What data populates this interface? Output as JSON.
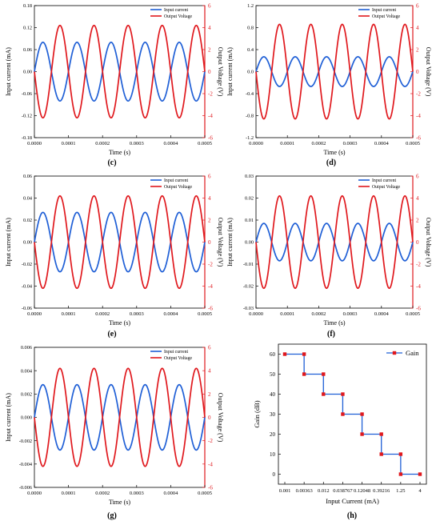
{
  "colors": {
    "input_current": "#1f5fd6",
    "output_voltage": "#e0181d",
    "gain": "#1f5fd6",
    "gain_marker": "#e0181d",
    "axis": "#000000"
  },
  "chart_data": [
    {
      "type": "line",
      "panel": "(c)",
      "xlabel": "Time (s)",
      "ylabel_left": "Input current (mA)",
      "ylabel_right": "Output Voltage (V)",
      "xlim": [
        0,
        0.0005
      ],
      "ylim_left": [
        -0.18,
        0.18
      ],
      "ylim_right": [
        -6,
        6
      ],
      "xticks": [
        "0.0000",
        "0.0001",
        "0.0002",
        "0.0003",
        "0.0004",
        "0.0005"
      ],
      "yticks_left": [
        "-0.18",
        "-0.12",
        "-0.06",
        "0.00",
        "0.06",
        "0.12",
        "0.18"
      ],
      "yticks_right": [
        "-6",
        "-4",
        "-2",
        "0",
        "2",
        "4",
        "6"
      ],
      "series": [
        {
          "name": "Input current",
          "axis": "left",
          "amplitude": 0.08,
          "frequency_hz": 10000,
          "phase": "sin"
        },
        {
          "name": "Output Voltage",
          "axis": "right",
          "amplitude": 4.2,
          "frequency_hz": 10000,
          "phase": "-sin"
        }
      ],
      "legend": "top-right"
    },
    {
      "type": "line",
      "panel": "(d)",
      "xlabel": "Time (s)",
      "ylabel_left": "Input current (mA)",
      "ylabel_right": "Output Voltage (V)",
      "xlim": [
        0,
        0.0005
      ],
      "ylim_left": [
        -1.2,
        1.2
      ],
      "ylim_right": [
        -6,
        6
      ],
      "xticks": [
        "0.0000",
        "0.0001",
        "0.0002",
        "0.0003",
        "0.0004",
        "0.0005"
      ],
      "yticks_left": [
        "-1.2",
        "-0.8",
        "-0.4",
        "0.0",
        "0.4",
        "0.8",
        "1.2"
      ],
      "yticks_right": [
        "-6",
        "-4",
        "-2",
        "0",
        "2",
        "4",
        "6"
      ],
      "series": [
        {
          "name": "Input current",
          "axis": "left",
          "amplitude": 0.27,
          "frequency_hz": 10000,
          "phase": "sin"
        },
        {
          "name": "Output Voltage",
          "axis": "right",
          "amplitude": 4.3,
          "frequency_hz": 10000,
          "phase": "-sin"
        }
      ],
      "legend": "top-right"
    },
    {
      "type": "line",
      "panel": "(e)",
      "xlabel": "Time (s)",
      "ylabel_left": "Input current (mA)",
      "ylabel_right": "Output Voltage (V)",
      "xlim": [
        0,
        0.0005
      ],
      "ylim_left": [
        -0.06,
        0.06
      ],
      "ylim_right": [
        -6,
        6
      ],
      "xticks": [
        "0.0000",
        "0.0001",
        "0.0002",
        "0.0003",
        "0.0004",
        "0.0005"
      ],
      "yticks_left": [
        "-0.06",
        "-0.04",
        "-0.02",
        "0.00",
        "0.02",
        "0.04",
        "0.06"
      ],
      "yticks_right": [
        "-6",
        "-4",
        "-2",
        "0",
        "2",
        "4",
        "6"
      ],
      "series": [
        {
          "name": "Input current",
          "axis": "left",
          "amplitude": 0.027,
          "frequency_hz": 10000,
          "phase": "sin"
        },
        {
          "name": "Output Voltage",
          "axis": "right",
          "amplitude": 4.2,
          "frequency_hz": 10000,
          "phase": "-sin"
        }
      ],
      "legend": "top-right"
    },
    {
      "type": "line",
      "panel": "(f)",
      "xlabel": "Time (s)",
      "ylabel_left": "Input current (mA)",
      "ylabel_right": "Output Voltage (V)",
      "xlim": [
        0,
        0.0005
      ],
      "ylim_left": [
        -0.03,
        0.03
      ],
      "ylim_right": [
        -6,
        6
      ],
      "xticks": [
        "0.0000",
        "0.0001",
        "0.0002",
        "0.0003",
        "0.0004",
        "0.0005"
      ],
      "yticks_left": [
        "-0.03",
        "-0.02",
        "-0.01",
        "0.00",
        "0.01",
        "0.02",
        "0.03"
      ],
      "yticks_right": [
        "-6",
        "-4",
        "-2",
        "0",
        "2",
        "4",
        "6"
      ],
      "series": [
        {
          "name": "Input current",
          "axis": "left",
          "amplitude": 0.0085,
          "frequency_hz": 10000,
          "phase": "sin"
        },
        {
          "name": "Output Voltage",
          "axis": "right",
          "amplitude": 4.2,
          "frequency_hz": 10000,
          "phase": "-sin"
        }
      ],
      "legend": "top-right"
    },
    {
      "type": "line",
      "panel": "(g)",
      "xlabel": "Time (s)",
      "ylabel_left": "Input current (mA)",
      "ylabel_right": "Output Voltage (V)",
      "xlim": [
        0,
        0.0005
      ],
      "ylim_left": [
        -0.006,
        0.006
      ],
      "ylim_right": [
        -6,
        6
      ],
      "xticks": [
        "0.0000",
        "0.0001",
        "0.0002",
        "0.0003",
        "0.0004",
        "0.0005"
      ],
      "yticks_left": [
        "-0.006",
        "-0.004",
        "-0.002",
        "0.000",
        "0.002",
        "0.004",
        "0.006"
      ],
      "yticks_right": [
        "-6",
        "-4",
        "-2",
        "0",
        "2",
        "4",
        "6"
      ],
      "series": [
        {
          "name": "Input current",
          "axis": "left",
          "amplitude": 0.0028,
          "frequency_hz": 10000,
          "phase": "sin"
        },
        {
          "name": "Output Voltage",
          "axis": "right",
          "amplitude": 4.2,
          "frequency_hz": 10000,
          "phase": "-sin"
        }
      ],
      "legend": "top-right"
    },
    {
      "type": "line",
      "panel": "(h)",
      "style": "step",
      "xlabel": "Input Current (mA)",
      "ylabel": "Gain (dB)",
      "categories": [
        "0.001",
        "0.00363",
        "0.012",
        "0.038767",
        "0.12048",
        "0.39216",
        "1.25",
        "4"
      ],
      "ylim": [
        -5,
        65
      ],
      "yticks": [
        "0",
        "10",
        "20",
        "30",
        "40",
        "50",
        "60"
      ],
      "series": [
        {
          "name": "Gain",
          "values": [
            60,
            50,
            40,
            30,
            20,
            10,
            0,
            0
          ]
        }
      ],
      "legend": "top-right"
    }
  ]
}
